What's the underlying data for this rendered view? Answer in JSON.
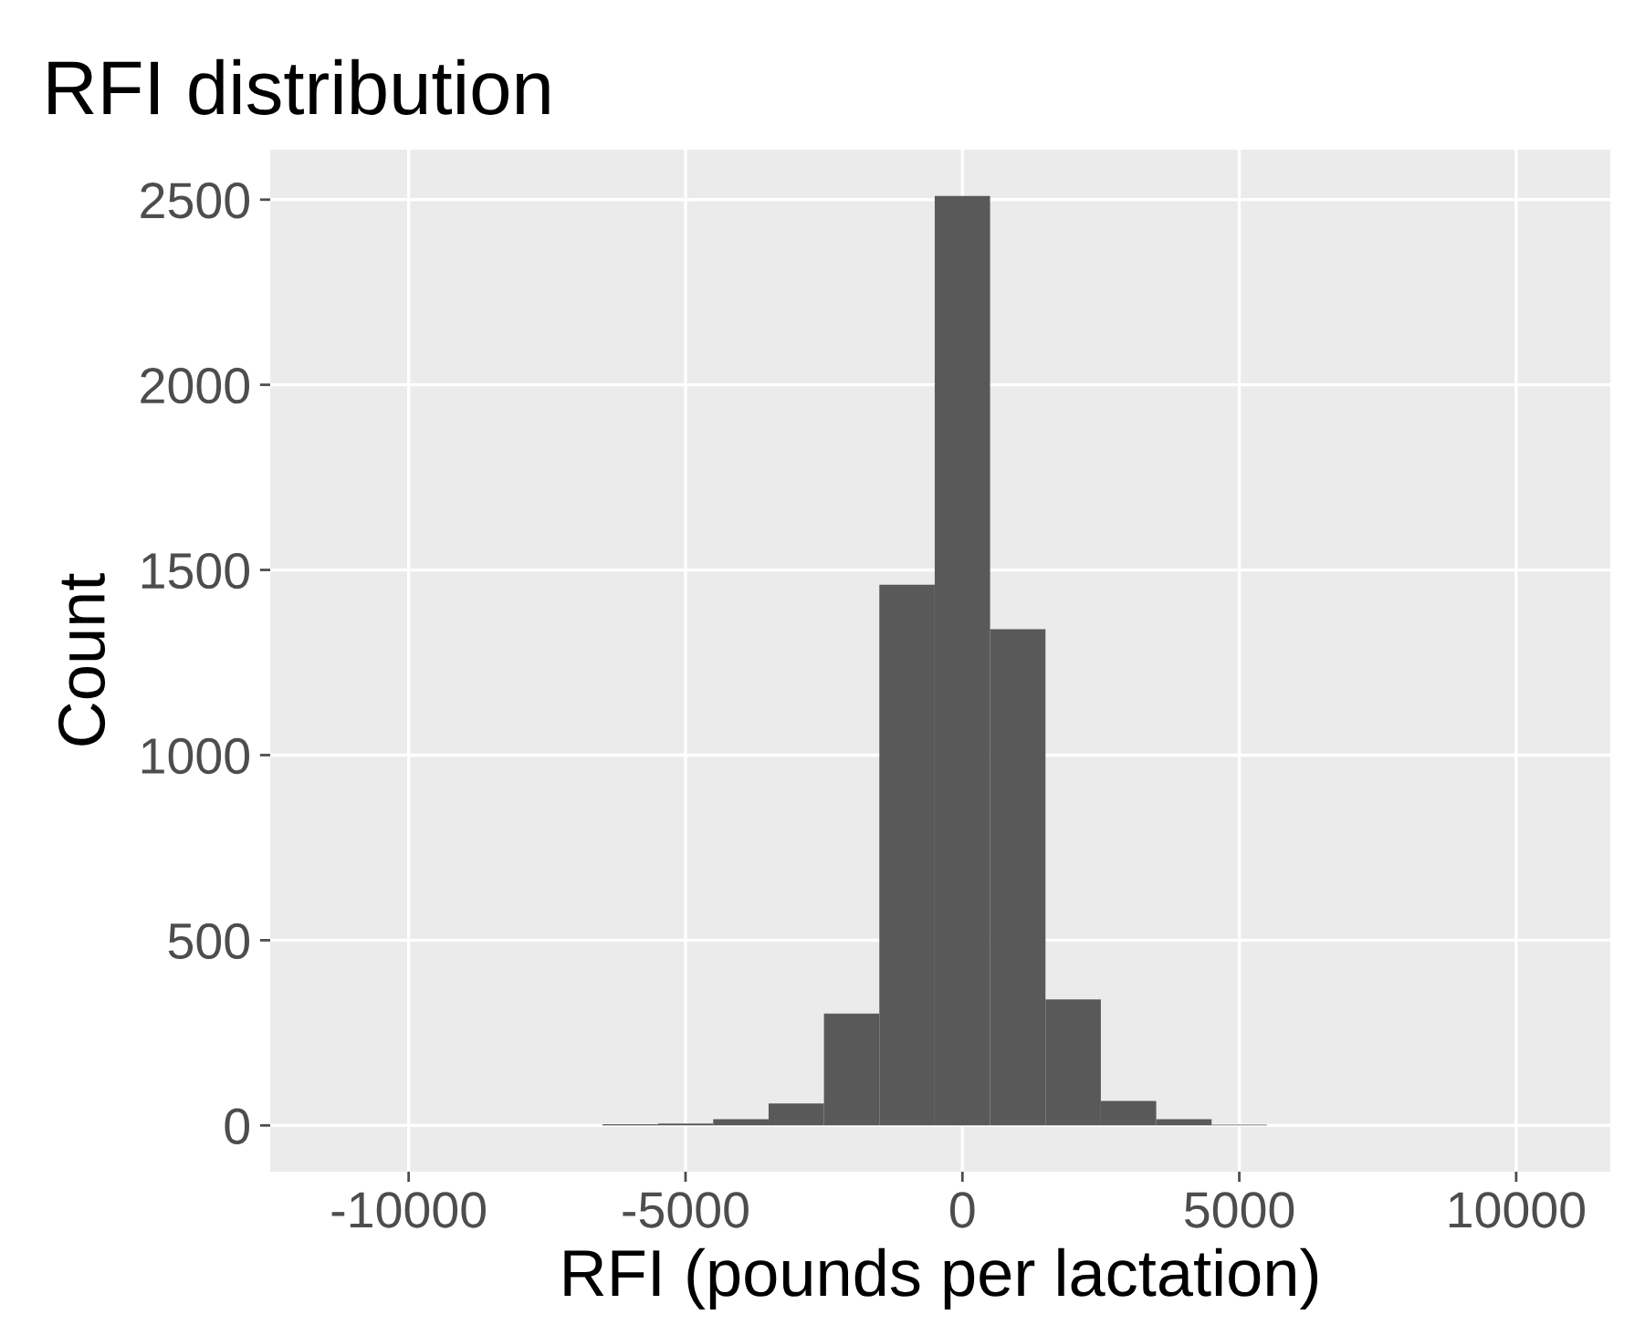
{
  "chart_data": {
    "type": "histogram",
    "title": "RFI distribution",
    "xlabel": "RFI (pounds per lactation)",
    "ylabel": "Count",
    "bins": [
      -6500,
      -5500,
      -4500,
      -3500,
      -2500,
      -1500,
      -500,
      500,
      1500,
      2500,
      3500,
      4500,
      5500
    ],
    "values": [
      3,
      5,
      17,
      59,
      302,
      1460,
      2510,
      1340,
      340,
      66,
      17,
      2
    ],
    "color": "#595959",
    "xlim": [
      -12500,
      11700
    ],
    "xticks": [
      -10000,
      -5000,
      0,
      5000,
      10000
    ],
    "ylim": [
      -125,
      2635
    ],
    "yticks": [
      0,
      500,
      1000,
      1500,
      2000,
      2500
    ],
    "grid": true
  }
}
